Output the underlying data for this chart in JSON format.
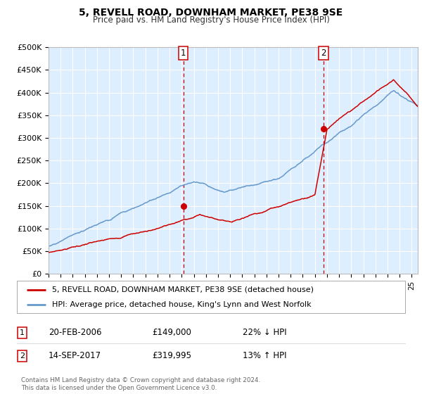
{
  "title": "5, REVELL ROAD, DOWNHAM MARKET, PE38 9SE",
  "subtitle": "Price paid vs. HM Land Registry's House Price Index (HPI)",
  "legend_line1": "5, REVELL ROAD, DOWNHAM MARKET, PE38 9SE (detached house)",
  "legend_line2": "HPI: Average price, detached house, King's Lynn and West Norfolk",
  "footnote": "Contains HM Land Registry data © Crown copyright and database right 2024.\nThis data is licensed under the Open Government Licence v3.0.",
  "transaction1_date": "20-FEB-2006",
  "transaction1_price": "£149,000",
  "transaction1_hpi": "22% ↓ HPI",
  "transaction2_date": "14-SEP-2017",
  "transaction2_price": "£319,995",
  "transaction2_hpi": "13% ↑ HPI",
  "marker1_x": 2006.13,
  "marker1_y": 149000,
  "marker2_x": 2017.71,
  "marker2_y": 319995,
  "hpi_color": "#6699cc",
  "price_color": "#cc0000",
  "plot_bg_color": "#ddeeff",
  "ylim": [
    0,
    500000
  ],
  "xlim": [
    1995,
    2025.5
  ],
  "yticks": [
    0,
    50000,
    100000,
    150000,
    200000,
    250000,
    300000,
    350000,
    400000,
    450000,
    500000
  ]
}
